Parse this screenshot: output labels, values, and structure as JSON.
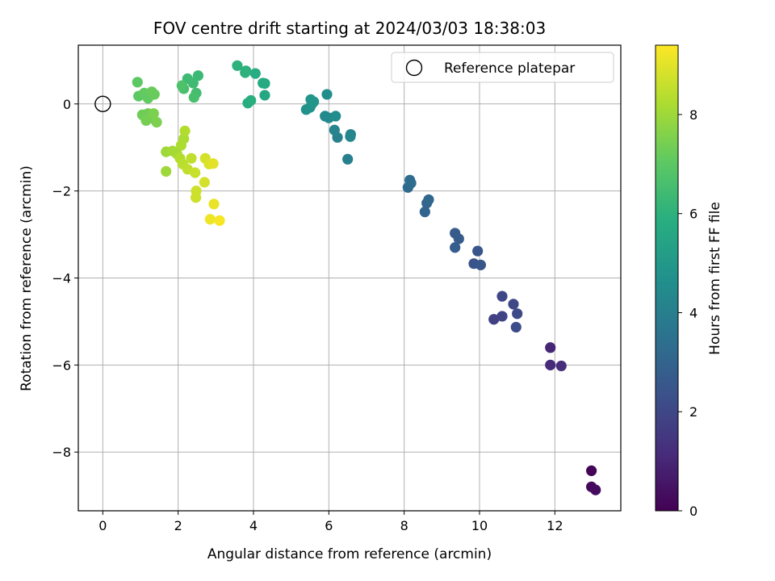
{
  "chart_data": {
    "type": "scatter",
    "title": "FOV centre drift starting at 2024/03/03 18:38:03",
    "xlabel": "Angular distance from reference (arcmin)",
    "ylabel": "Rotation from reference (arcmin)",
    "xlim": [
      -0.65,
      13.75
    ],
    "ylim": [
      -9.35,
      1.35
    ],
    "xticks": [
      0,
      2,
      4,
      6,
      8,
      10,
      12
    ],
    "yticks": [
      -8,
      -6,
      -4,
      -2,
      0
    ],
    "grid": true,
    "legend": {
      "position": "top-right",
      "entries": [
        "Reference platepar"
      ]
    },
    "reference": {
      "x": 0,
      "y": 0
    },
    "colorbar": {
      "label": "Hours from first FF file",
      "colormap": "viridis",
      "range": [
        0,
        9.4
      ],
      "ticks": [
        0,
        2,
        4,
        6,
        8
      ]
    },
    "points": [
      {
        "x": 12.97,
        "y": -8.43,
        "t": 0.1
      },
      {
        "x": 12.97,
        "y": -8.8,
        "t": 0.2
      },
      {
        "x": 13.08,
        "y": -8.87,
        "t": 0.3
      },
      {
        "x": 11.88,
        "y": -5.6,
        "t": 1.0
      },
      {
        "x": 11.88,
        "y": -6.0,
        "t": 1.1
      },
      {
        "x": 12.17,
        "y": -6.02,
        "t": 1.2
      },
      {
        "x": 10.38,
        "y": -4.95,
        "t": 1.8
      },
      {
        "x": 10.6,
        "y": -4.88,
        "t": 1.9
      },
      {
        "x": 10.6,
        "y": -4.42,
        "t": 2.0
      },
      {
        "x": 10.9,
        "y": -4.6,
        "t": 2.0
      },
      {
        "x": 11.0,
        "y": -4.82,
        "t": 2.1
      },
      {
        "x": 10.97,
        "y": -5.13,
        "t": 2.2
      },
      {
        "x": 9.85,
        "y": -3.67,
        "t": 2.4
      },
      {
        "x": 10.03,
        "y": -3.7,
        "t": 2.5
      },
      {
        "x": 9.95,
        "y": -3.38,
        "t": 2.5
      },
      {
        "x": 9.35,
        "y": -2.97,
        "t": 2.7
      },
      {
        "x": 9.45,
        "y": -3.1,
        "t": 2.7
      },
      {
        "x": 9.35,
        "y": -3.3,
        "t": 2.8
      },
      {
        "x": 8.55,
        "y": -2.48,
        "t": 3.0
      },
      {
        "x": 8.6,
        "y": -2.28,
        "t": 3.0
      },
      {
        "x": 8.65,
        "y": -2.2,
        "t": 3.1
      },
      {
        "x": 8.1,
        "y": -1.92,
        "t": 3.2
      },
      {
        "x": 8.15,
        "y": -1.75,
        "t": 3.3
      },
      {
        "x": 8.18,
        "y": -1.82,
        "t": 3.3
      },
      {
        "x": 6.5,
        "y": -1.27,
        "t": 4.0
      },
      {
        "x": 6.23,
        "y": -0.77,
        "t": 4.1
      },
      {
        "x": 6.15,
        "y": -0.6,
        "t": 4.2
      },
      {
        "x": 6.58,
        "y": -0.7,
        "t": 4.2
      },
      {
        "x": 6.57,
        "y": -0.75,
        "t": 4.3
      },
      {
        "x": 5.9,
        "y": -0.28,
        "t": 4.4
      },
      {
        "x": 6.0,
        "y": -0.32,
        "t": 4.4
      },
      {
        "x": 6.18,
        "y": -0.28,
        "t": 4.5
      },
      {
        "x": 5.95,
        "y": 0.22,
        "t": 4.6
      },
      {
        "x": 5.4,
        "y": -0.13,
        "t": 4.7
      },
      {
        "x": 5.5,
        "y": -0.08,
        "t": 4.8
      },
      {
        "x": 5.55,
        "y": 0.0,
        "t": 4.8
      },
      {
        "x": 5.52,
        "y": 0.1,
        "t": 4.9
      },
      {
        "x": 5.6,
        "y": 0.05,
        "t": 4.9
      },
      {
        "x": 4.3,
        "y": 0.2,
        "t": 5.6
      },
      {
        "x": 4.3,
        "y": 0.47,
        "t": 5.6
      },
      {
        "x": 4.25,
        "y": 0.48,
        "t": 5.7
      },
      {
        "x": 4.05,
        "y": 0.7,
        "t": 5.8
      },
      {
        "x": 3.85,
        "y": 0.02,
        "t": 5.8
      },
      {
        "x": 3.93,
        "y": 0.08,
        "t": 5.9
      },
      {
        "x": 3.8,
        "y": 0.76,
        "t": 5.9
      },
      {
        "x": 3.78,
        "y": 0.72,
        "t": 6.0
      },
      {
        "x": 3.57,
        "y": 0.88,
        "t": 6.0
      },
      {
        "x": 2.53,
        "y": 0.65,
        "t": 6.3
      },
      {
        "x": 2.4,
        "y": 0.48,
        "t": 6.4
      },
      {
        "x": 2.25,
        "y": 0.58,
        "t": 6.4
      },
      {
        "x": 2.48,
        "y": 0.25,
        "t": 6.5
      },
      {
        "x": 2.42,
        "y": 0.15,
        "t": 6.6
      },
      {
        "x": 2.15,
        "y": 0.35,
        "t": 6.6
      },
      {
        "x": 2.1,
        "y": 0.42,
        "t": 6.7
      },
      {
        "x": 0.92,
        "y": 0.5,
        "t": 7.0
      },
      {
        "x": 0.95,
        "y": 0.18,
        "t": 7.0
      },
      {
        "x": 1.1,
        "y": 0.25,
        "t": 7.1
      },
      {
        "x": 1.2,
        "y": 0.13,
        "t": 7.1
      },
      {
        "x": 1.3,
        "y": 0.28,
        "t": 7.2
      },
      {
        "x": 1.37,
        "y": 0.22,
        "t": 7.2
      },
      {
        "x": 1.05,
        "y": -0.25,
        "t": 7.3
      },
      {
        "x": 1.2,
        "y": -0.22,
        "t": 7.3
      },
      {
        "x": 1.25,
        "y": -0.33,
        "t": 7.4
      },
      {
        "x": 1.15,
        "y": -0.38,
        "t": 7.4
      },
      {
        "x": 1.35,
        "y": -0.22,
        "t": 7.5
      },
      {
        "x": 1.43,
        "y": -0.42,
        "t": 7.5
      },
      {
        "x": 1.68,
        "y": -1.55,
        "t": 8.0
      },
      {
        "x": 1.68,
        "y": -1.1,
        "t": 8.0
      },
      {
        "x": 1.85,
        "y": -1.08,
        "t": 8.1
      },
      {
        "x": 1.97,
        "y": -1.15,
        "t": 8.1
      },
      {
        "x": 2.08,
        "y": -0.95,
        "t": 8.2
      },
      {
        "x": 2.15,
        "y": -0.8,
        "t": 8.2
      },
      {
        "x": 2.18,
        "y": -0.62,
        "t": 8.3
      },
      {
        "x": 2.05,
        "y": -1.25,
        "t": 8.3
      },
      {
        "x": 2.12,
        "y": -1.38,
        "t": 8.4
      },
      {
        "x": 2.25,
        "y": -1.5,
        "t": 8.5
      },
      {
        "x": 2.35,
        "y": -1.25,
        "t": 8.5
      },
      {
        "x": 2.45,
        "y": -1.58,
        "t": 8.6
      },
      {
        "x": 2.48,
        "y": -2.0,
        "t": 8.7
      },
      {
        "x": 2.47,
        "y": -2.15,
        "t": 8.7
      },
      {
        "x": 2.7,
        "y": -1.8,
        "t": 8.8
      },
      {
        "x": 2.72,
        "y": -1.25,
        "t": 8.8
      },
      {
        "x": 2.82,
        "y": -1.38,
        "t": 8.9
      },
      {
        "x": 2.93,
        "y": -1.37,
        "t": 9.0
      },
      {
        "x": 2.95,
        "y": -2.3,
        "t": 9.1
      },
      {
        "x": 2.85,
        "y": -2.65,
        "t": 9.2
      },
      {
        "x": 3.1,
        "y": -2.68,
        "t": 9.3
      }
    ]
  }
}
